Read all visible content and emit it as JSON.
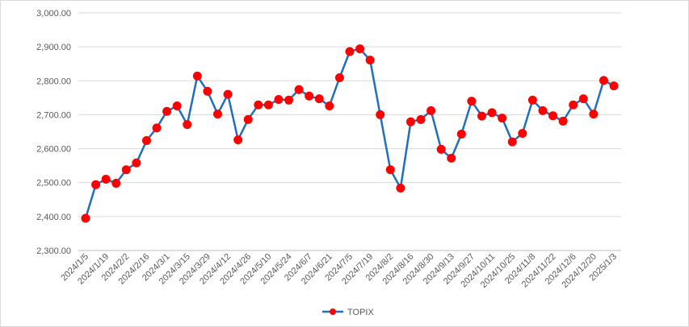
{
  "chart_data": {
    "type": "line",
    "title": "",
    "xlabel": "",
    "ylabel": "",
    "ylim": [
      2300,
      3000
    ],
    "yticks": [
      "2,300.00",
      "2,400.00",
      "2,500.00",
      "2,600.00",
      "2,700.00",
      "2,800.00",
      "2,900.00",
      "3,000.00"
    ],
    "grid": "horizontal",
    "legend": "bottom-center",
    "x_tick_labels": [
      "2024/1/5",
      "2024/1/19",
      "2024/2/2",
      "2024/2/16",
      "2024/3/1",
      "2024/3/15",
      "2024/3/29",
      "2024/4/12",
      "2024/4/26",
      "2024/5/10",
      "2024/5/24",
      "2024/6/7",
      "2024/6/21",
      "2024/7/5",
      "2024/7/19",
      "2024/8/2",
      "2024/8/16",
      "2024/8/30",
      "2024/9/13",
      "2024/9/27",
      "2024/10/11",
      "2024/10/25",
      "2024/11/8",
      "2024/11/22",
      "2024/12/6",
      "2024/12/20",
      "2025/1/3"
    ],
    "x": [
      "2024/1/5",
      "2024/1/12",
      "2024/1/19",
      "2024/1/26",
      "2024/2/2",
      "2024/2/9",
      "2024/2/16",
      "2024/2/23",
      "2024/3/1",
      "2024/3/8",
      "2024/3/15",
      "2024/3/22",
      "2024/3/29",
      "2024/4/5",
      "2024/4/12",
      "2024/4/19",
      "2024/4/26",
      "2024/5/3",
      "2024/5/10",
      "2024/5/17",
      "2024/5/24",
      "2024/5/31",
      "2024/6/7",
      "2024/6/14",
      "2024/6/21",
      "2024/6/28",
      "2024/7/5",
      "2024/7/12",
      "2024/7/19",
      "2024/7/26",
      "2024/8/2",
      "2024/8/9",
      "2024/8/16",
      "2024/8/23",
      "2024/8/30",
      "2024/9/6",
      "2024/9/13",
      "2024/9/20",
      "2024/9/27",
      "2024/10/4",
      "2024/10/11",
      "2024/10/18",
      "2024/10/25",
      "2024/11/1",
      "2024/11/8",
      "2024/11/15",
      "2024/11/22",
      "2024/11/29",
      "2024/12/6",
      "2024/12/13",
      "2024/12/20",
      "2024/12/27",
      "2025/1/3"
    ],
    "series": [
      {
        "name": "TOPIX",
        "color": "#1f6fbf",
        "marker_color": "#ff0000",
        "values": [
          2395,
          2494,
          2510,
          2498,
          2538,
          2558,
          2624,
          2661,
          2710,
          2726,
          2671,
          2814,
          2769,
          2702,
          2760,
          2626,
          2686,
          2729,
          2729,
          2745,
          2743,
          2774,
          2755,
          2747,
          2726,
          2809,
          2886,
          2894,
          2861,
          2700,
          2538,
          2484,
          2679,
          2686,
          2712,
          2598,
          2572,
          2643,
          2740,
          2696,
          2706,
          2690,
          2620,
          2645,
          2743,
          2712,
          2697,
          2681,
          2729,
          2747,
          2702,
          2801,
          2785
        ]
      }
    ]
  }
}
